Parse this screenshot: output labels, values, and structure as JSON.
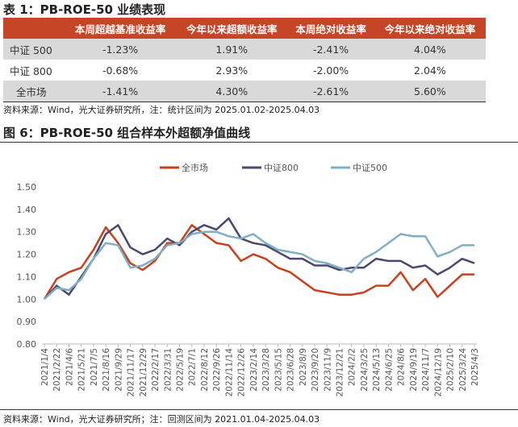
{
  "table": {
    "title": "表 1：PB-ROE-50 业绩表现",
    "headers": [
      "",
      "本周超越基准收益率",
      "今年以来超额收益率",
      "本周绝对收益率",
      "今年以来绝对收益率"
    ],
    "rows": [
      [
        "中证 500",
        "-1.23%",
        "1.91%",
        "-2.41%",
        "4.04%"
      ],
      [
        "中证 800",
        "-0.68%",
        "2.93%",
        "-2.00%",
        "2.04%"
      ],
      [
        "全市场",
        "-1.41%",
        "4.30%",
        "-2.61%",
        "5.60%"
      ]
    ],
    "note": "资料来源：Wind，光大证券研究所，注：统计区间为 2025.01.02-2025.04.03"
  },
  "figure": {
    "title": "图 6：PB-ROE-50 组合样本外超额净值曲线",
    "note": "资料来源：Wind，光大证券研究所；注：回测区间为 2021.01.04-2025.04.03"
  },
  "chart_data": {
    "type": "line",
    "ylim": [
      0.8,
      1.5
    ],
    "yticks": [
      "0.80",
      "0.90",
      "1.00",
      "1.10",
      "1.20",
      "1.30",
      "1.40",
      "1.50"
    ],
    "grid": false,
    "legend": "top",
    "categories": [
      "2021/1/4",
      "2021/2/22",
      "2021/4/6",
      "2021/5/21",
      "2021/7/5",
      "2021/8/16",
      "2021/9/29",
      "2021/11/17",
      "2021/12/29",
      "2022/2/17",
      "2022/3/31",
      "2022/5/19",
      "2022/7/1",
      "2022/8/12",
      "2022/9/26",
      "2022/11/14",
      "2022/12/26",
      "2023/2/14",
      "2023/3/28",
      "2023/5/15",
      "2023/6/28",
      "2023/8/9",
      "2023/9/20",
      "2023/11/9",
      "2023/12/21",
      "2024/2/2",
      "2024/3/25",
      "2024/5/13",
      "2024/6/25",
      "2024/8/6",
      "2024/9/19",
      "2024/11/7",
      "2024/12/19",
      "2025/2/10",
      "2025/3/24",
      "2025/4/3"
    ],
    "series": [
      {
        "name": "全市场",
        "color": "#C8401E",
        "values": [
          1.0,
          1.09,
          1.12,
          1.14,
          1.22,
          1.32,
          1.25,
          1.16,
          1.13,
          1.17,
          1.25,
          1.25,
          1.33,
          1.29,
          1.25,
          1.24,
          1.17,
          1.2,
          1.18,
          1.14,
          1.12,
          1.08,
          1.04,
          1.03,
          1.02,
          1.02,
          1.03,
          1.06,
          1.06,
          1.12,
          1.04,
          1.09,
          1.01,
          1.06,
          1.11,
          1.11
        ]
      },
      {
        "name": "中证800",
        "color": "#4B4870",
        "values": [
          1.0,
          1.06,
          1.02,
          1.1,
          1.18,
          1.29,
          1.33,
          1.23,
          1.2,
          1.22,
          1.27,
          1.24,
          1.3,
          1.33,
          1.31,
          1.36,
          1.27,
          1.25,
          1.24,
          1.21,
          1.18,
          1.18,
          1.15,
          1.15,
          1.13,
          1.14,
          1.14,
          1.18,
          1.17,
          1.17,
          1.14,
          1.15,
          1.11,
          1.14,
          1.18,
          1.16
        ]
      },
      {
        "name": "中证500",
        "color": "#7FAFC4",
        "values": [
          1.0,
          1.05,
          1.04,
          1.09,
          1.18,
          1.25,
          1.24,
          1.14,
          1.15,
          1.18,
          1.24,
          1.25,
          1.29,
          1.3,
          1.3,
          1.28,
          1.27,
          1.29,
          1.25,
          1.22,
          1.21,
          1.2,
          1.17,
          1.16,
          1.14,
          1.12,
          1.18,
          1.21,
          1.25,
          1.29,
          1.28,
          1.28,
          1.19,
          1.21,
          1.24,
          1.24
        ]
      }
    ]
  }
}
